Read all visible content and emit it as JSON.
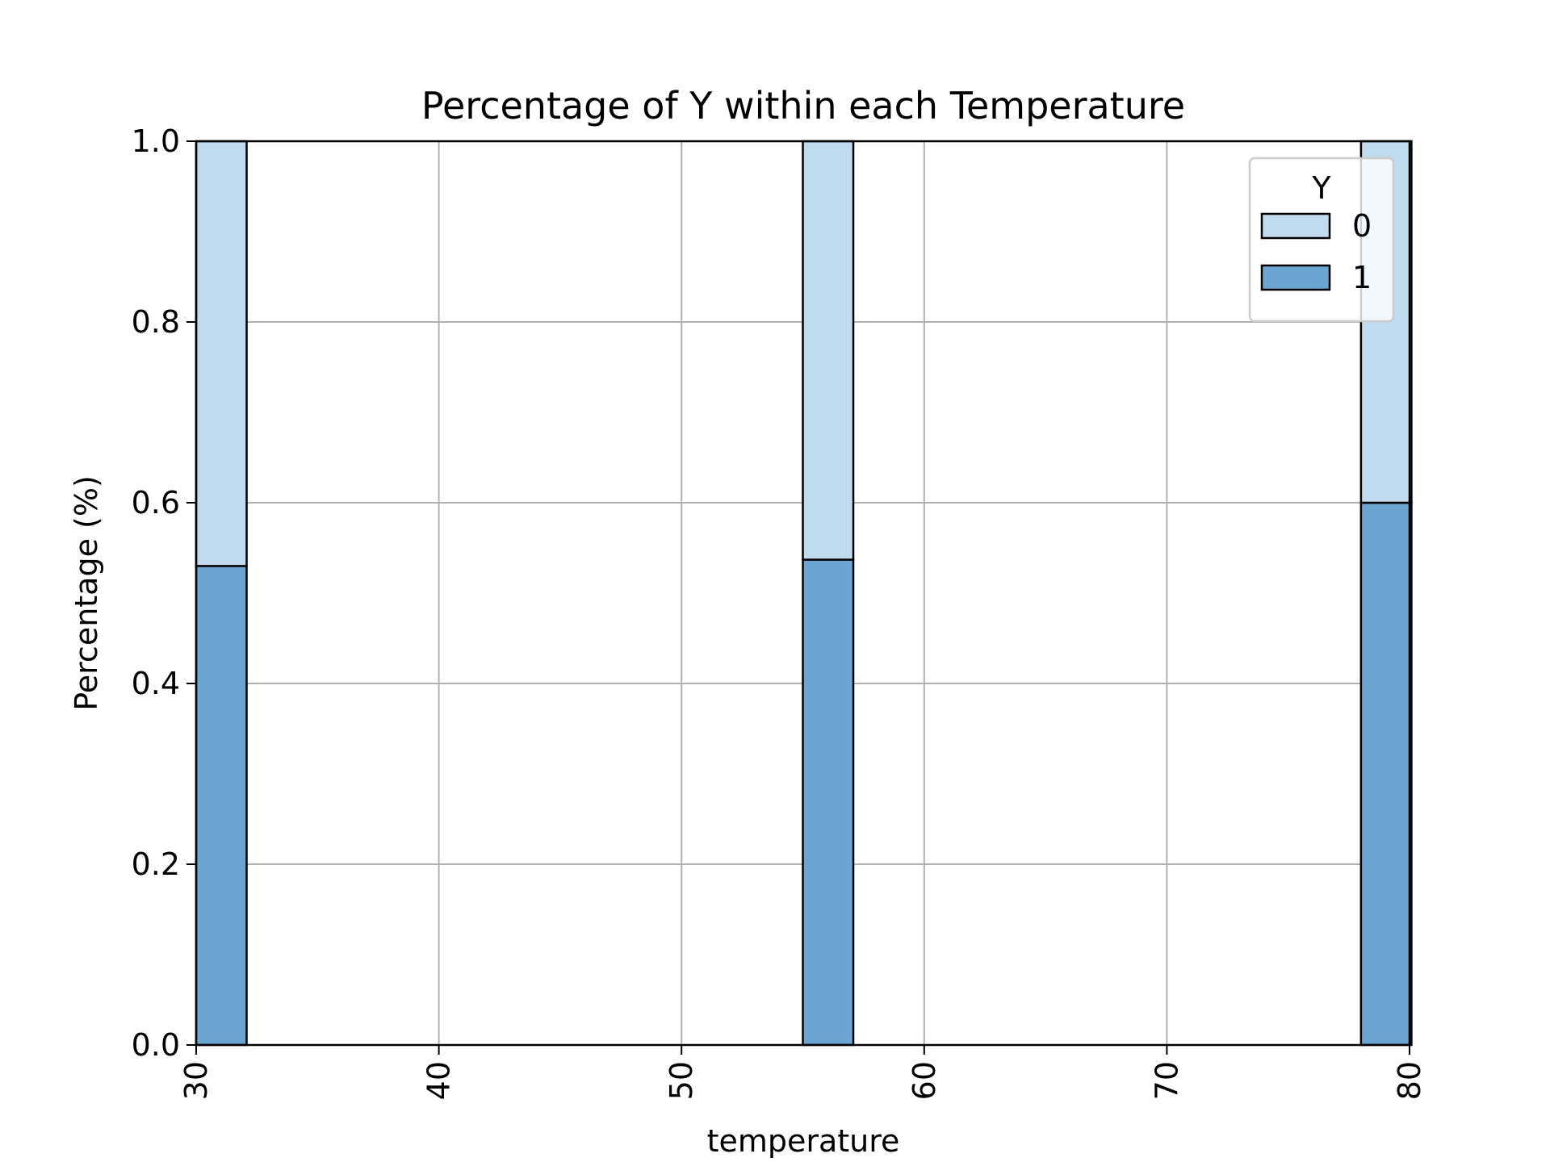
{
  "chart_data": {
    "type": "bar",
    "title": "Percentage of Y within each Temperature",
    "xlabel": "temperature",
    "ylabel": "Percentage (%)",
    "xlim": [
      30,
      80
    ],
    "ylim": [
      0,
      1
    ],
    "xticks": [
      "30",
      "40",
      "50",
      "60",
      "70",
      "80"
    ],
    "yticks": [
      "0.0",
      "0.2",
      "0.4",
      "0.6",
      "0.8",
      "1.0"
    ],
    "grid": true,
    "legend_title": "Y",
    "legend_position": "top-right",
    "bin_width": 2.08,
    "x": [
      30,
      55,
      78
    ],
    "series": [
      {
        "name": "1",
        "color": "#6ba5d2",
        "values": [
          0.53,
          0.537,
          0.6
        ]
      },
      {
        "name": "0",
        "color": "#c0dbed",
        "values": [
          0.47,
          0.463,
          0.4
        ]
      }
    ],
    "legend_order": [
      "0",
      "1"
    ]
  }
}
